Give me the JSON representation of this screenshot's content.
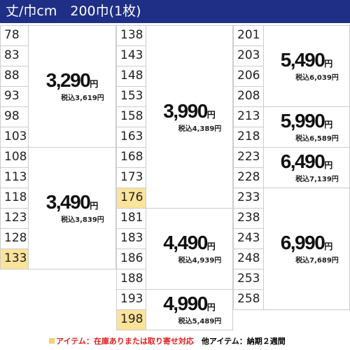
{
  "header": {
    "title": "丈/巾cm　200巾(1枚)"
  },
  "currency": "円",
  "highlight_sizes": [
    133,
    176,
    198
  ],
  "columns": [
    {
      "groups": [
        {
          "sizes": [
            78,
            83,
            88,
            93,
            98,
            103
          ],
          "price": "3,290",
          "tax_price": "税込3,619円"
        },
        {
          "sizes": [
            108,
            113,
            118,
            123,
            128,
            133
          ],
          "price": "3,490",
          "tax_price": "税込3,839円"
        }
      ]
    },
    {
      "groups": [
        {
          "sizes": [
            138,
            143,
            148,
            153,
            158,
            163,
            168,
            173,
            176
          ],
          "price": "3,990",
          "tax_price": "税込4,389円"
        },
        {
          "sizes": [
            181,
            183,
            186,
            188
          ],
          "price": "4,490",
          "tax_price": "税込4,939円"
        },
        {
          "sizes": [
            193,
            198
          ],
          "price": "4,990",
          "tax_price": "税込5,489円"
        }
      ]
    },
    {
      "groups": [
        {
          "sizes": [
            201,
            203,
            206,
            208
          ],
          "price": "5,490",
          "tax_price": "税込6,039円"
        },
        {
          "sizes": [
            213,
            218
          ],
          "price": "5,990",
          "tax_price": "税込6,589円"
        },
        {
          "sizes": [
            223,
            228
          ],
          "price": "6,490",
          "tax_price": "税込7,139円"
        },
        {
          "sizes": [
            233,
            238,
            243,
            248,
            253,
            258
          ],
          "price": "6,990",
          "tax_price": "税込7,689円"
        }
      ]
    }
  ],
  "footer": {
    "note1": "アイテム：在庫ありまたは取り寄せ対応",
    "note2": "他アイテム：納期２週間"
  }
}
